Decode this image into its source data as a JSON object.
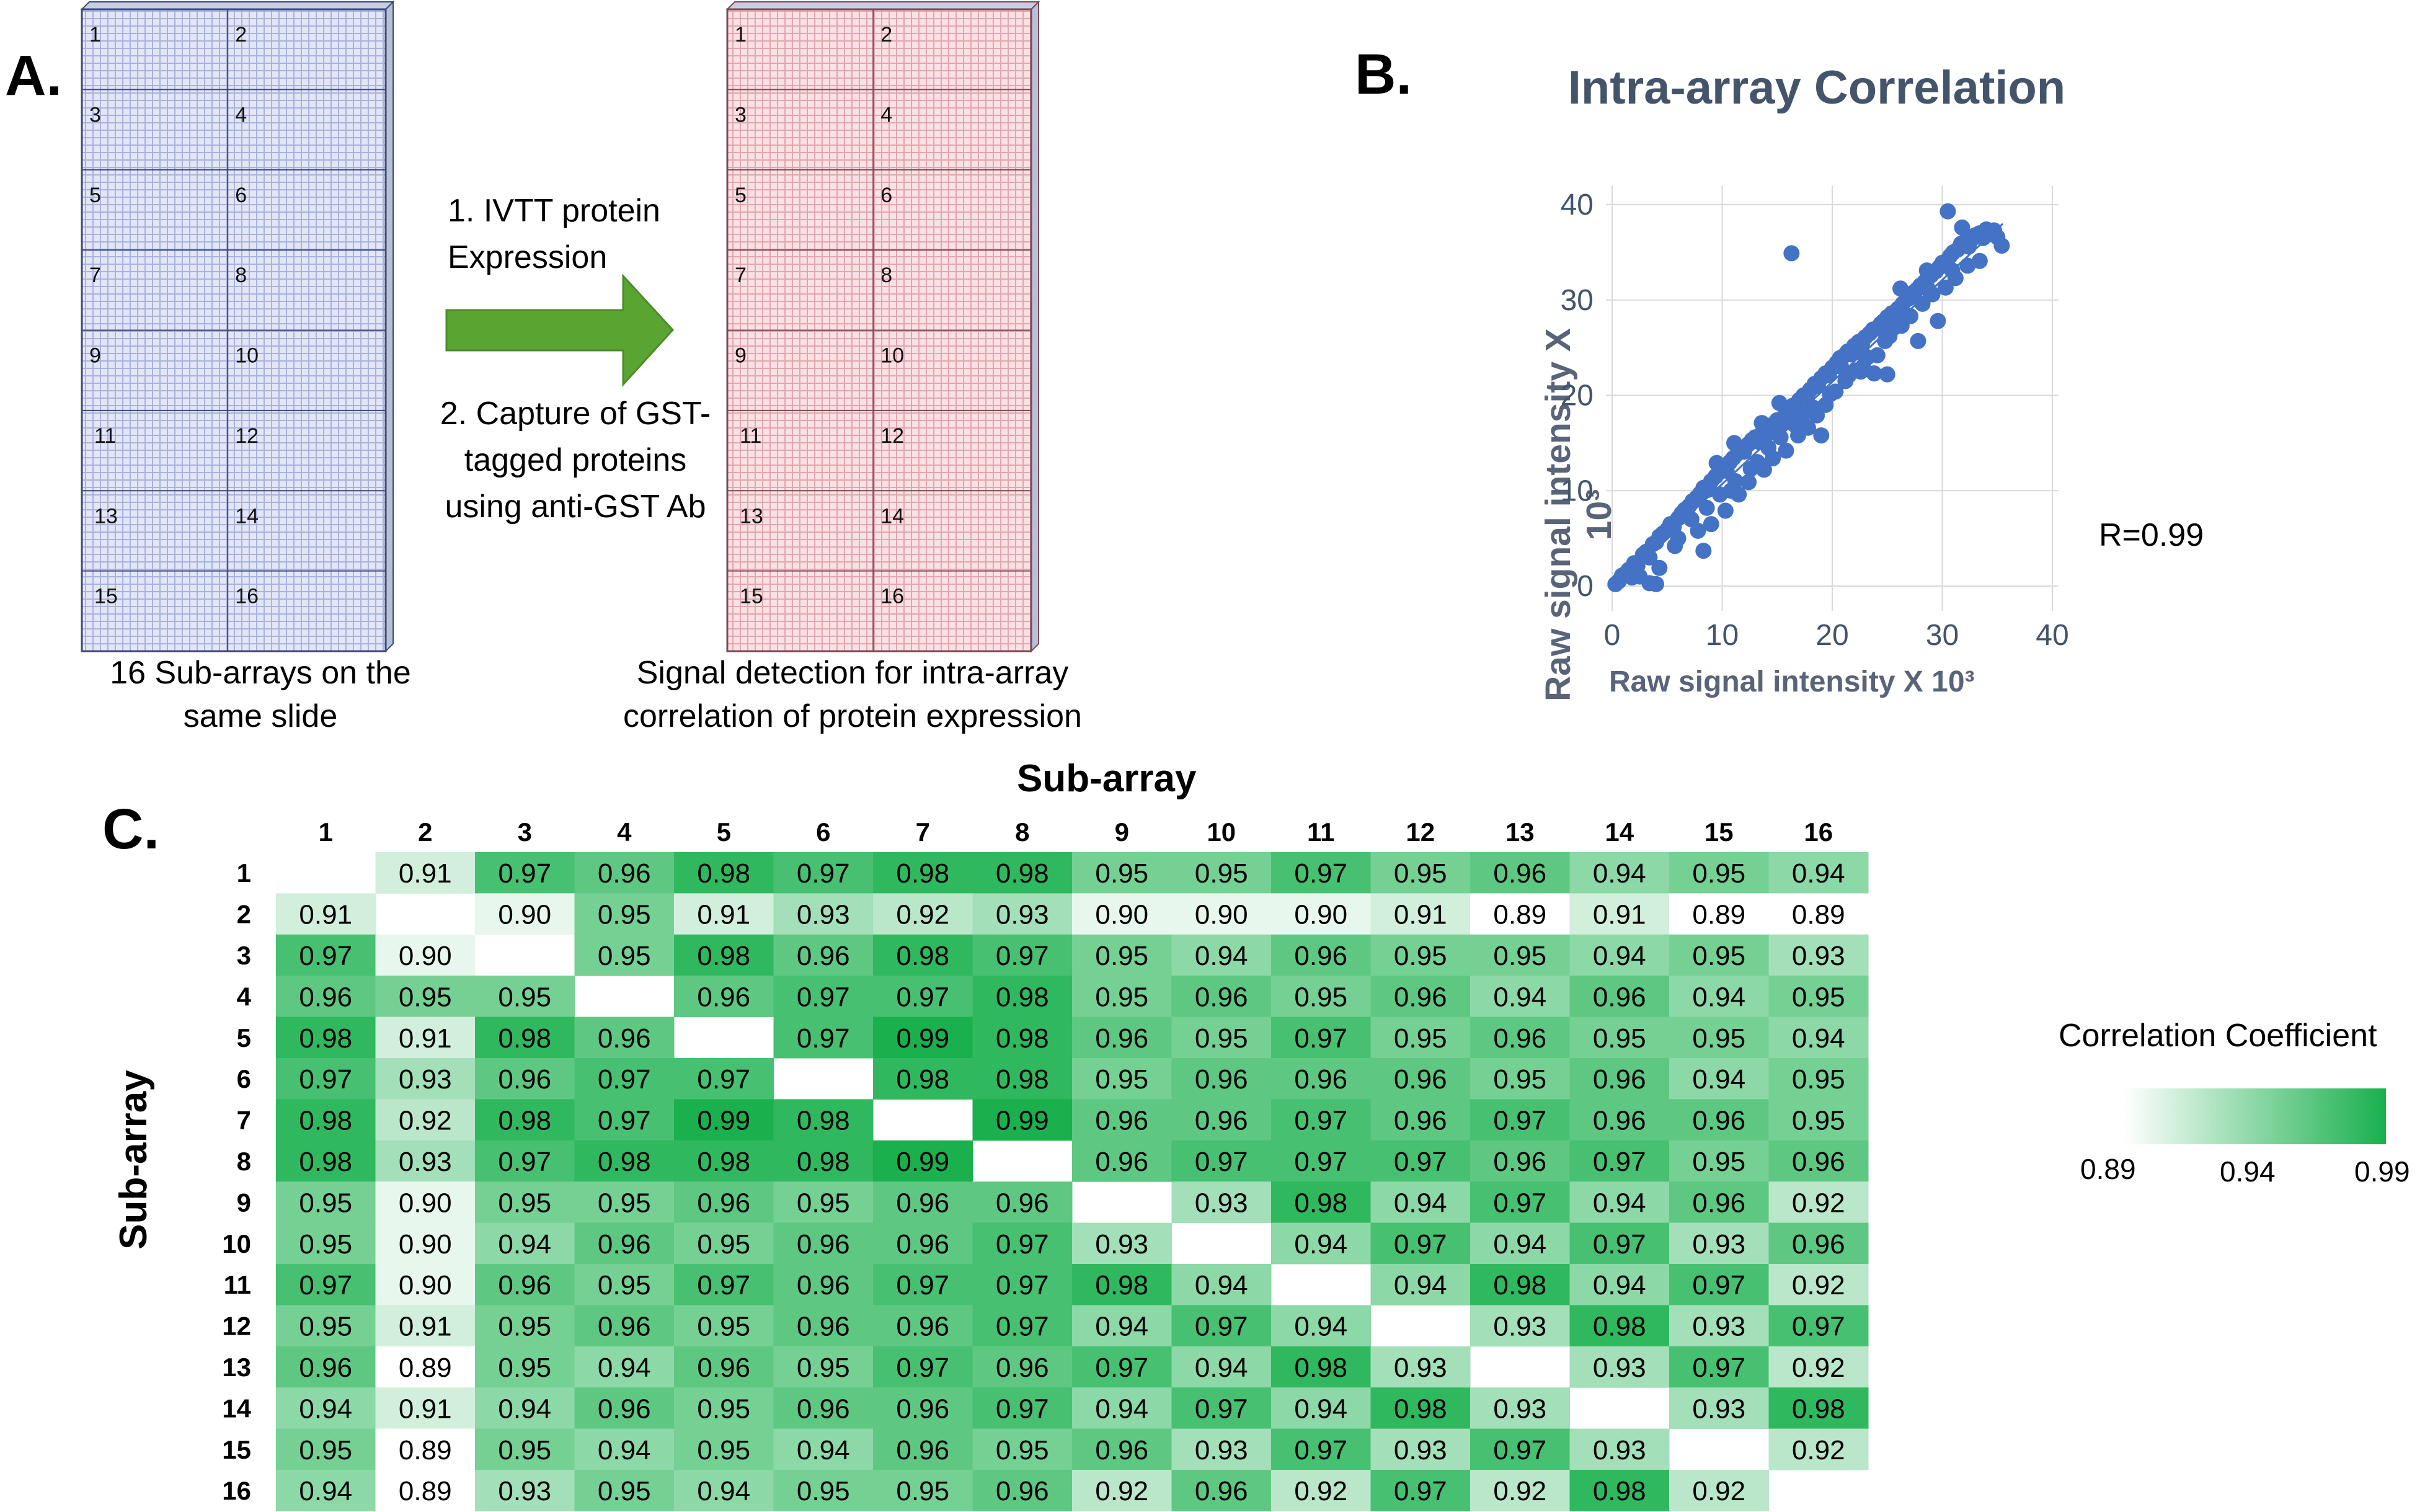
{
  "panelA": {
    "label": "A.",
    "left_caption": [
      "16 Sub-arrays on the",
      "same slide"
    ],
    "right_caption": [
      "Signal detection for intra-array",
      "correlation of protein expression"
    ],
    "step1": [
      "1. IVTT protein",
      "Expression"
    ],
    "step2": [
      "2. Capture of GST-",
      "tagged proteins",
      "using anti-GST Ab"
    ],
    "slide_numbers": [
      "1",
      "2",
      "3",
      "4",
      "5",
      "6",
      "7",
      "8",
      "9",
      "10",
      "11",
      "12",
      "13",
      "14",
      "15",
      "16"
    ],
    "colors": {
      "left_slide": "#dfe3f5",
      "left_border": "#3b4a78",
      "right_slide": "#f8dde0",
      "right_border": "#7a4a55",
      "arrow": "#5aa532"
    }
  },
  "panelB": {
    "label": "B.",
    "annotation": "R=0.99",
    "chart_data": {
      "type": "scatter",
      "title": "Intra-array Correlation",
      "xlabel": "Raw signal intensity X 10³",
      "ylabel": "Raw signal intensity X 10³",
      "xlim": [
        0,
        40
      ],
      "ylim": [
        0,
        40
      ],
      "xticks": [
        "0",
        "10",
        "20",
        "30",
        "40"
      ],
      "yticks": [
        "0",
        "10",
        "20",
        "30",
        "40"
      ],
      "grid": true,
      "point_color": "#4472c4",
      "trendline": {
        "x": [
          0,
          35.5
        ],
        "y": [
          0,
          38
        ]
      },
      "points": [
        [
          0.3,
          0.2
        ],
        [
          0.6,
          0.5
        ],
        [
          0.9,
          1.1
        ],
        [
          1.2,
          1.3
        ],
        [
          1.5,
          1.7
        ],
        [
          2.0,
          2.4
        ],
        [
          2.3,
          2.1
        ],
        [
          2.8,
          3.3
        ],
        [
          3.1,
          3.6
        ],
        [
          3.4,
          3.0
        ],
        [
          3.7,
          4.4
        ],
        [
          4.0,
          4.6
        ],
        [
          4.3,
          5.2
        ],
        [
          4.6,
          5.5
        ],
        [
          5.0,
          5.9
        ],
        [
          5.3,
          6.5
        ],
        [
          5.6,
          6.2
        ],
        [
          6.0,
          7.1
        ],
        [
          6.3,
          7.6
        ],
        [
          6.6,
          8.0
        ],
        [
          7.0,
          8.4
        ],
        [
          7.3,
          8.9
        ],
        [
          7.7,
          9.3
        ],
        [
          8.0,
          9.7
        ],
        [
          8.3,
          10.3
        ],
        [
          8.7,
          10.1
        ],
        [
          9.0,
          11.0
        ],
        [
          9.4,
          11.5
        ],
        [
          9.7,
          11.9
        ],
        [
          10.0,
          12.4
        ],
        [
          10.4,
          12.1
        ],
        [
          10.7,
          13.0
        ],
        [
          11.0,
          13.4
        ],
        [
          11.4,
          13.9
        ],
        [
          11.7,
          14.4
        ],
        [
          12.0,
          14.1
        ],
        [
          12.4,
          14.9
        ],
        [
          12.7,
          15.3
        ],
        [
          13.0,
          15.6
        ],
        [
          13.4,
          15.1
        ],
        [
          13.7,
          16.2
        ],
        [
          14.0,
          16.6
        ],
        [
          14.4,
          16.1
        ],
        [
          14.7,
          17.0
        ],
        [
          15.0,
          17.4
        ],
        [
          15.4,
          16.9
        ],
        [
          15.7,
          17.9
        ],
        [
          16.0,
          18.3
        ],
        [
          16.4,
          18.9
        ],
        [
          16.7,
          18.6
        ],
        [
          17.0,
          19.5
        ],
        [
          17.4,
          20.0
        ],
        [
          17.7,
          19.7
        ],
        [
          18.0,
          20.6
        ],
        [
          18.4,
          21.2
        ],
        [
          18.7,
          21.0
        ],
        [
          19.0,
          21.8
        ],
        [
          19.4,
          22.3
        ],
        [
          19.7,
          22.1
        ],
        [
          20.0,
          22.9
        ],
        [
          20.4,
          23.4
        ],
        [
          20.7,
          23.9
        ],
        [
          21.0,
          24.1
        ],
        [
          21.4,
          24.6
        ],
        [
          21.7,
          24.3
        ],
        [
          22.0,
          25.2
        ],
        [
          22.4,
          25.6
        ],
        [
          22.7,
          25.3
        ],
        [
          23.0,
          26.1
        ],
        [
          23.4,
          26.5
        ],
        [
          23.7,
          26.9
        ],
        [
          24.0,
          27.0
        ],
        [
          24.4,
          27.5
        ],
        [
          24.7,
          27.8
        ],
        [
          25.0,
          28.2
        ],
        [
          25.4,
          28.6
        ],
        [
          25.7,
          28.4
        ],
        [
          26.0,
          29.1
        ],
        [
          26.4,
          29.6
        ],
        [
          26.7,
          30.0
        ],
        [
          27.0,
          30.2
        ],
        [
          27.4,
          30.8
        ],
        [
          27.7,
          31.1
        ],
        [
          28.0,
          31.5
        ],
        [
          28.4,
          31.9
        ],
        [
          28.7,
          32.3
        ],
        [
          29.0,
          32.6
        ],
        [
          29.4,
          33.0
        ],
        [
          29.7,
          33.4
        ],
        [
          30.0,
          33.9
        ],
        [
          30.4,
          34.1
        ],
        [
          30.7,
          34.6
        ],
        [
          31.0,
          35.0
        ],
        [
          31.4,
          35.3
        ],
        [
          31.7,
          35.9
        ],
        [
          32.0,
          36.1
        ],
        [
          32.4,
          35.6
        ],
        [
          32.7,
          36.4
        ],
        [
          33.0,
          36.8
        ],
        [
          33.4,
          37.0
        ],
        [
          33.7,
          36.5
        ],
        [
          34.0,
          37.4
        ],
        [
          34.4,
          36.9
        ],
        [
          34.7,
          37.3
        ],
        [
          35.0,
          36.6
        ],
        [
          35.4,
          35.7
        ],
        [
          2.5,
          1.0
        ],
        [
          3.4,
          0.3
        ],
        [
          4.3,
          1.9
        ],
        [
          4.0,
          0.2
        ],
        [
          6.0,
          5.0
        ],
        [
          7.8,
          5.8
        ],
        [
          8.3,
          3.7
        ],
        [
          9.0,
          6.5
        ],
        [
          10.3,
          7.9
        ],
        [
          11.5,
          9.6
        ],
        [
          12.4,
          10.9
        ],
        [
          13.8,
          12.2
        ],
        [
          14.6,
          13.4
        ],
        [
          15.8,
          14.2
        ],
        [
          16.9,
          15.8
        ],
        [
          17.8,
          16.6
        ],
        [
          18.6,
          17.9
        ],
        [
          19.4,
          19.0
        ],
        [
          20.3,
          20.4
        ],
        [
          21.2,
          21.5
        ],
        [
          22.1,
          22.6
        ],
        [
          22.8,
          23.0
        ],
        [
          24.1,
          24.2
        ],
        [
          25.2,
          26.2
        ],
        [
          26.3,
          27.3
        ],
        [
          27.1,
          28.3
        ],
        [
          28.2,
          29.6
        ],
        [
          29.1,
          30.6
        ],
        [
          30.3,
          31.3
        ],
        [
          31.2,
          32.3
        ],
        [
          32.3,
          33.6
        ],
        [
          33.4,
          34.1
        ],
        [
          16.3,
          34.9
        ],
        [
          30.5,
          39.3
        ],
        [
          7.2,
          7.0
        ],
        [
          8.6,
          8.2
        ],
        [
          9.8,
          9.6
        ],
        [
          11.2,
          11.0
        ],
        [
          12.6,
          12.3
        ],
        [
          14.2,
          14.5
        ],
        [
          15.3,
          15.6
        ],
        [
          16.6,
          16.9
        ],
        [
          18.3,
          18.7
        ],
        [
          19.8,
          20.1
        ],
        [
          21.5,
          22.1
        ],
        [
          23.2,
          24.0
        ],
        [
          24.8,
          25.7
        ],
        [
          26.5,
          28.2
        ],
        [
          28.8,
          31.0
        ],
        [
          30.9,
          33.1
        ],
        [
          10.8,
          10.0
        ],
        [
          13.2,
          13.0
        ],
        [
          17.4,
          18.0
        ],
        [
          20.8,
          23.0
        ],
        [
          22.5,
          24.5
        ],
        [
          25.5,
          27.0
        ],
        [
          1.8,
          0.9
        ],
        [
          5.7,
          4.2
        ],
        [
          19.0,
          15.8
        ],
        [
          23.8,
          22.3
        ],
        [
          27.8,
          25.7
        ],
        [
          29.6,
          27.8
        ],
        [
          25.0,
          22.2
        ],
        [
          22.6,
          22.5
        ],
        [
          15.2,
          19.2
        ],
        [
          13.6,
          17.1
        ],
        [
          11.1,
          15.0
        ],
        [
          9.5,
          12.9
        ],
        [
          26.2,
          31.2
        ],
        [
          28.6,
          33.1
        ],
        [
          31.8,
          37.6
        ]
      ]
    }
  },
  "panelC": {
    "label": "C.",
    "col_title": "Sub-array",
    "row_title": "Sub-array",
    "labels": [
      "1",
      "2",
      "3",
      "4",
      "5",
      "6",
      "7",
      "8",
      "9",
      "10",
      "11",
      "12",
      "13",
      "14",
      "15",
      "16"
    ],
    "legend_title": "Correlation Coefficient",
    "legend_min": "0.89",
    "legend_mid": "0.94",
    "legend_max": "0.99",
    "color_low": "#ffffff",
    "color_high": "#19b04d",
    "chart_data": {
      "type": "heatmap",
      "title": "Correlation Coefficient",
      "xlabel": "Sub-array",
      "ylabel": "Sub-array",
      "vmin": 0.89,
      "vmax": 0.99,
      "categories": [
        "1",
        "2",
        "3",
        "4",
        "5",
        "6",
        "7",
        "8",
        "9",
        "10",
        "11",
        "12",
        "13",
        "14",
        "15",
        "16"
      ],
      "values": [
        [
          null,
          "0.91",
          "0.97",
          "0.96",
          "0.98",
          "0.97",
          "0.98",
          "0.98",
          "0.95",
          "0.95",
          "0.97",
          "0.95",
          "0.96",
          "0.94",
          "0.95",
          "0.94"
        ],
        [
          "0.91",
          null,
          "0.90",
          "0.95",
          "0.91",
          "0.93",
          "0.92",
          "0.93",
          "0.90",
          "0.90",
          "0.90",
          "0.91",
          "0.89",
          "0.91",
          "0.89",
          "0.89"
        ],
        [
          "0.97",
          "0.90",
          null,
          "0.95",
          "0.98",
          "0.96",
          "0.98",
          "0.97",
          "0.95",
          "0.94",
          "0.96",
          "0.95",
          "0.95",
          "0.94",
          "0.95",
          "0.93"
        ],
        [
          "0.96",
          "0.95",
          "0.95",
          null,
          "0.96",
          "0.97",
          "0.97",
          "0.98",
          "0.95",
          "0.96",
          "0.95",
          "0.96",
          "0.94",
          "0.96",
          "0.94",
          "0.95"
        ],
        [
          "0.98",
          "0.91",
          "0.98",
          "0.96",
          null,
          "0.97",
          "0.99",
          "0.98",
          "0.96",
          "0.95",
          "0.97",
          "0.95",
          "0.96",
          "0.95",
          "0.95",
          "0.94"
        ],
        [
          "0.97",
          "0.93",
          "0.96",
          "0.97",
          "0.97",
          null,
          "0.98",
          "0.98",
          "0.95",
          "0.96",
          "0.96",
          "0.96",
          "0.95",
          "0.96",
          "0.94",
          "0.95"
        ],
        [
          "0.98",
          "0.92",
          "0.98",
          "0.97",
          "0.99",
          "0.98",
          null,
          "0.99",
          "0.96",
          "0.96",
          "0.97",
          "0.96",
          "0.97",
          "0.96",
          "0.96",
          "0.95"
        ],
        [
          "0.98",
          "0.93",
          "0.97",
          "0.98",
          "0.98",
          "0.98",
          "0.99",
          null,
          "0.96",
          "0.97",
          "0.97",
          "0.97",
          "0.96",
          "0.97",
          "0.95",
          "0.96"
        ],
        [
          "0.95",
          "0.90",
          "0.95",
          "0.95",
          "0.96",
          "0.95",
          "0.96",
          "0.96",
          null,
          "0.93",
          "0.98",
          "0.94",
          "0.97",
          "0.94",
          "0.96",
          "0.92"
        ],
        [
          "0.95",
          "0.90",
          "0.94",
          "0.96",
          "0.95",
          "0.96",
          "0.96",
          "0.97",
          "0.93",
          null,
          "0.94",
          "0.97",
          "0.94",
          "0.97",
          "0.93",
          "0.96"
        ],
        [
          "0.97",
          "0.90",
          "0.96",
          "0.95",
          "0.97",
          "0.96",
          "0.97",
          "0.97",
          "0.98",
          "0.94",
          null,
          "0.94",
          "0.98",
          "0.94",
          "0.97",
          "0.92"
        ],
        [
          "0.95",
          "0.91",
          "0.95",
          "0.96",
          "0.95",
          "0.96",
          "0.96",
          "0.97",
          "0.94",
          "0.97",
          "0.94",
          null,
          "0.93",
          "0.98",
          "0.93",
          "0.97"
        ],
        [
          "0.96",
          "0.89",
          "0.95",
          "0.94",
          "0.96",
          "0.95",
          "0.97",
          "0.96",
          "0.97",
          "0.94",
          "0.98",
          "0.93",
          null,
          "0.93",
          "0.97",
          "0.92"
        ],
        [
          "0.94",
          "0.91",
          "0.94",
          "0.96",
          "0.95",
          "0.96",
          "0.96",
          "0.97",
          "0.94",
          "0.97",
          "0.94",
          "0.98",
          "0.93",
          null,
          "0.93",
          "0.98"
        ],
        [
          "0.95",
          "0.89",
          "0.95",
          "0.94",
          "0.95",
          "0.94",
          "0.96",
          "0.95",
          "0.96",
          "0.93",
          "0.97",
          "0.93",
          "0.97",
          "0.93",
          null,
          "0.92"
        ],
        [
          "0.94",
          "0.89",
          "0.93",
          "0.95",
          "0.94",
          "0.95",
          "0.95",
          "0.96",
          "0.92",
          "0.96",
          "0.92",
          "0.97",
          "0.92",
          "0.98",
          "0.92",
          null
        ]
      ]
    }
  }
}
